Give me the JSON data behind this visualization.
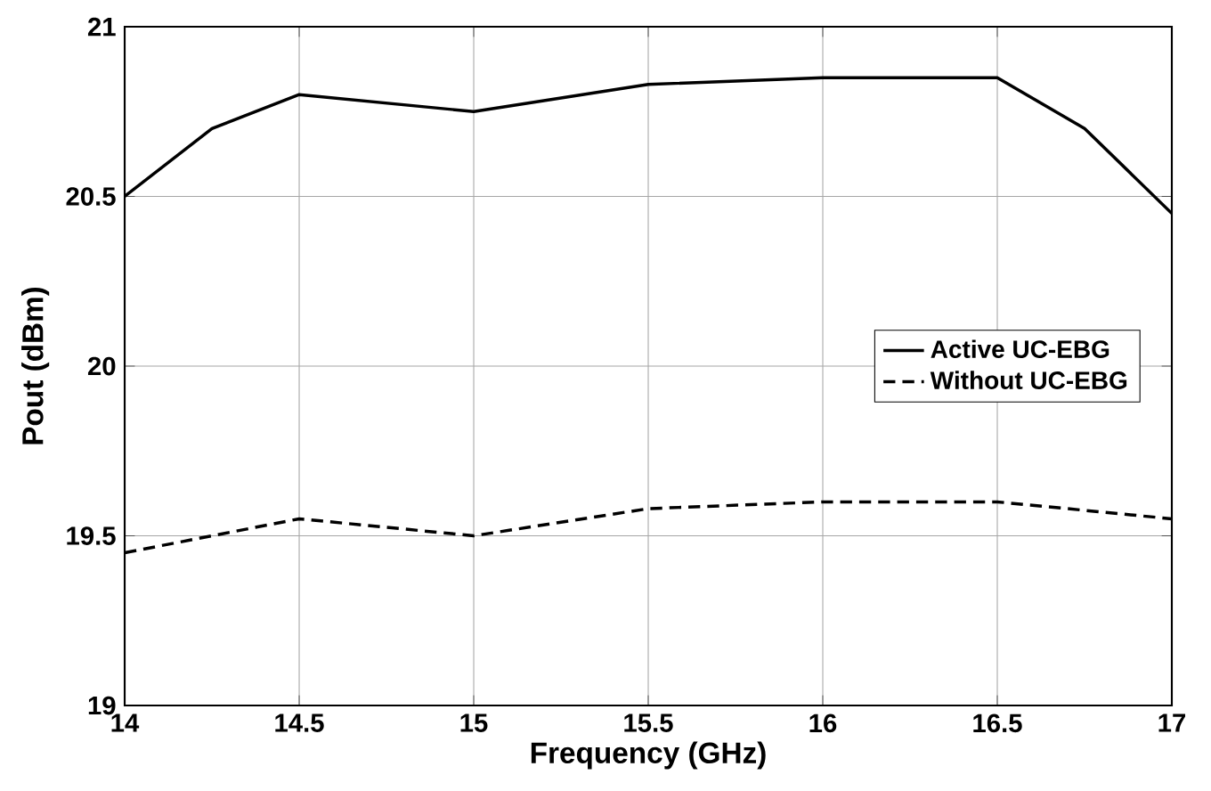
{
  "chart_data": {
    "type": "line",
    "xlabel": "Frequency (GHz)",
    "ylabel": "Pout (dBm)",
    "xlim": [
      14,
      17
    ],
    "ylim": [
      19,
      21
    ],
    "xticks": [
      14,
      14.5,
      15,
      15.5,
      16,
      16.5,
      17
    ],
    "yticks": [
      19,
      19.5,
      20,
      20.5,
      21
    ],
    "grid": true,
    "legend": "right",
    "marker": "none",
    "series": [
      {
        "name": "Active UC-EBG",
        "color": "#000000",
        "line_style": "solid",
        "x": [
          14,
          14.25,
          14.5,
          15,
          15.5,
          16,
          16.5,
          16.75,
          17
        ],
        "values": [
          20.5,
          20.7,
          20.8,
          20.75,
          20.83,
          20.85,
          20.85,
          20.7,
          20.45
        ]
      },
      {
        "name": "Without UC-EBG",
        "color": "#000000",
        "line_style": "dashed",
        "x": [
          14,
          14.25,
          14.5,
          15,
          15.5,
          16,
          16.5,
          17
        ],
        "values": [
          19.45,
          19.5,
          19.55,
          19.5,
          19.58,
          19.6,
          19.6,
          19.55
        ]
      }
    ]
  }
}
